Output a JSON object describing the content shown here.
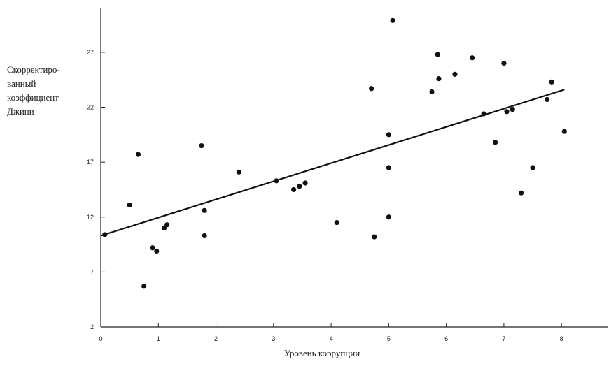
{
  "chart_data": {
    "type": "scatter",
    "title": "",
    "xlabel": "Уровень коррупции",
    "ylabel": "Скорректиро-\nванный\nкоэффициент\nДжини",
    "xlim": [
      0,
      8.8
    ],
    "ylim": [
      2,
      31
    ],
    "x_ticks": [
      0,
      1,
      2,
      3,
      4,
      5,
      6,
      7,
      8
    ],
    "y_ticks": [
      2,
      7,
      12,
      17,
      22,
      27
    ],
    "grid": false,
    "legend": "none",
    "points": [
      {
        "x": 0.07,
        "y": 10.4
      },
      {
        "x": 0.5,
        "y": 13.1
      },
      {
        "x": 0.65,
        "y": 17.7
      },
      {
        "x": 0.75,
        "y": 5.7
      },
      {
        "x": 0.9,
        "y": 9.2
      },
      {
        "x": 0.97,
        "y": 8.9
      },
      {
        "x": 1.1,
        "y": 11.0
      },
      {
        "x": 1.15,
        "y": 11.3
      },
      {
        "x": 1.75,
        "y": 18.5
      },
      {
        "x": 1.8,
        "y": 12.6
      },
      {
        "x": 1.8,
        "y": 10.3
      },
      {
        "x": 2.4,
        "y": 16.1
      },
      {
        "x": 3.05,
        "y": 15.3
      },
      {
        "x": 3.35,
        "y": 14.5
      },
      {
        "x": 3.45,
        "y": 14.8
      },
      {
        "x": 3.55,
        "y": 15.1
      },
      {
        "x": 4.1,
        "y": 11.5
      },
      {
        "x": 4.7,
        "y": 23.7
      },
      {
        "x": 4.75,
        "y": 10.2
      },
      {
        "x": 5.0,
        "y": 19.5
      },
      {
        "x": 5.0,
        "y": 16.5
      },
      {
        "x": 5.0,
        "y": 12.0
      },
      {
        "x": 5.07,
        "y": 29.9
      },
      {
        "x": 5.75,
        "y": 23.4
      },
      {
        "x": 5.85,
        "y": 26.8
      },
      {
        "x": 5.87,
        "y": 24.6
      },
      {
        "x": 6.15,
        "y": 25.0
      },
      {
        "x": 6.45,
        "y": 26.5
      },
      {
        "x": 6.65,
        "y": 21.4
      },
      {
        "x": 6.85,
        "y": 18.8
      },
      {
        "x": 7.0,
        "y": 26.0
      },
      {
        "x": 7.05,
        "y": 21.6
      },
      {
        "x": 7.15,
        "y": 21.8
      },
      {
        "x": 7.3,
        "y": 14.2
      },
      {
        "x": 7.5,
        "y": 16.5
      },
      {
        "x": 7.75,
        "y": 22.7
      },
      {
        "x": 7.83,
        "y": 24.3
      },
      {
        "x": 8.05,
        "y": 19.8
      }
    ],
    "trendline": {
      "x": [
        0,
        8.05
      ],
      "y": [
        10.3,
        23.6
      ]
    },
    "colors": {
      "points": "#111111",
      "line": "#111111",
      "axis": "#222222"
    }
  }
}
